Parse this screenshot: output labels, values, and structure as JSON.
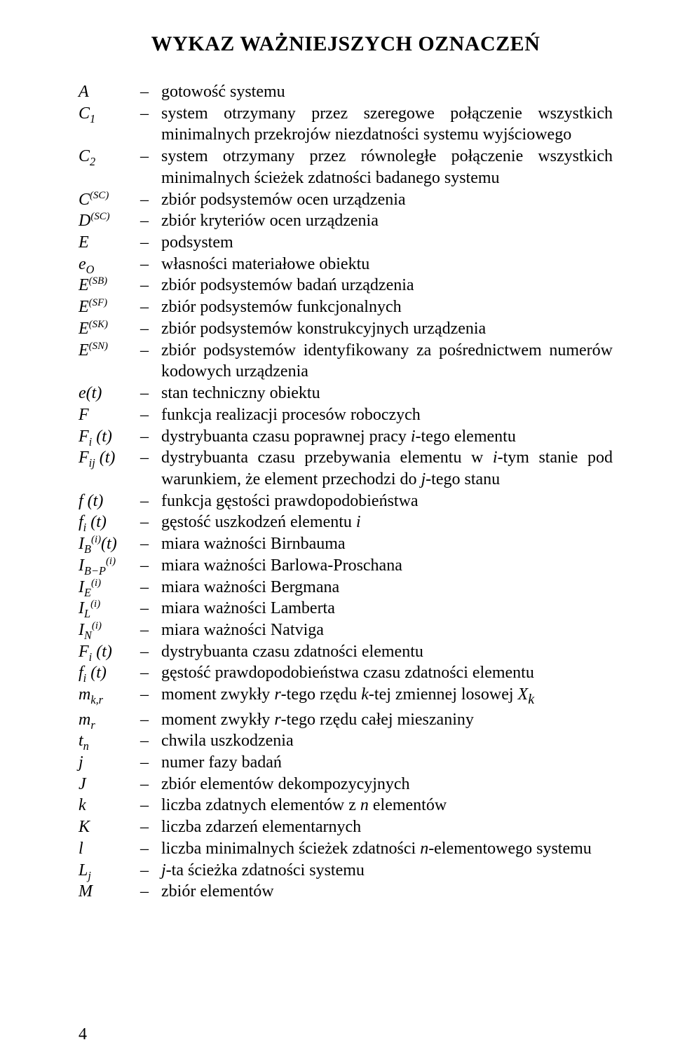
{
  "title": "WYKAZ WAŻNIEJSZYCH OZNACZEŃ",
  "dash": "–",
  "page_number": "4",
  "entries": [
    {
      "symbol": "<i>A</i>",
      "desc": "gotowość systemu"
    },
    {
      "symbol": "<i>C</i><sub>1</sub>",
      "desc": "system otrzymany przez szeregowe połączenie wszystkich minimalnych przekrojów niezdatności systemu wyjściowego"
    },
    {
      "symbol": "<i>C</i><sub>2</sub>",
      "desc": "system otrzymany przez równoległe połączenie wszystkich minimalnych ścieżek zdatności badanego systemu"
    },
    {
      "symbol": "<i>C</i><sup>(<i>SC</i>)</sup>",
      "desc": "zbiór podsystemów ocen urządzenia"
    },
    {
      "symbol": "<i>D</i><sup>(<i>SC</i>)</sup>",
      "desc": "zbiór kryteriów ocen urządzenia"
    },
    {
      "symbol": "<i>E</i>",
      "desc": "podsystem"
    },
    {
      "symbol": "<i>e<sub>O</sub></i>",
      "desc": "własności materiałowe obiektu"
    },
    {
      "symbol": "<i>E</i><sup>(<i>SB</i>)</sup>",
      "desc": "zbiór podsystemów badań urządzenia"
    },
    {
      "symbol": "<i>E</i><sup>(<i>SF</i>)</sup>",
      "desc": "zbiór podsystemów funkcjonalnych"
    },
    {
      "symbol": "<i>E</i><sup>(<i>SK</i>)</sup>",
      "desc": "zbiór podsystemów konstrukcyjnych urządzenia"
    },
    {
      "symbol": "<i>E</i><sup>(<i>SN</i>)</sup>",
      "desc": "zbiór podsystemów identyfikowany za pośrednictwem numerów kodowych urządzenia"
    },
    {
      "symbol": "<i>e</i>(<i>t</i>)",
      "desc": "stan techniczny obiektu"
    },
    {
      "symbol": "<i>F</i>",
      "desc": "funkcja realizacji procesów roboczych"
    },
    {
      "symbol": "<i>F<sub>i</sub></i> (<i>t</i>)",
      "desc": "dystrybuanta czasu poprawnej pracy <span class=\"ital\">i</span>-tego elementu"
    },
    {
      "symbol": "<i>F<sub>ij</sub></i> (<i>t</i>)",
      "desc": "dystrybuanta czasu przebywania elementu w <span class=\"ital\">i</span>-tym stanie pod warunkiem, że element przechodzi do <span class=\"ital\">j</span>-tego stanu"
    },
    {
      "symbol": "<i>f</i> (<i>t</i>)",
      "desc": "funkcja gęstości prawdopodobieństwa"
    },
    {
      "symbol": "<i>f<sub>i</sub></i> (<i>t</i>)",
      "desc": "gęstość uszkodzeń elementu <span class=\"ital\">i</span>"
    },
    {
      "symbol": "<i>I</i><sub><i>B</i></sub><sup>(<i>i</i>)</sup>(<i>t</i>)",
      "desc": "miara ważności Birnbauma"
    },
    {
      "symbol": "<i>I</i><sub><i>B</i>−<i>P</i></sub><sup>(<i>i</i>)</sup>",
      "desc": "miara ważności Barlowa-Proschana"
    },
    {
      "symbol": "<i>I</i><sub><i>E</i></sub><sup>(<i>i</i>)</sup>",
      "desc": "miara ważności Bergmana"
    },
    {
      "symbol": "<i>I</i><sub><i>L</i></sub><sup>(<i>i</i>)</sup>",
      "desc": "miara ważności Lamberta"
    },
    {
      "symbol": "<i>I</i><sub><i>N</i></sub><sup>(<i>i</i>)</sup>",
      "desc": "miara ważności Natviga"
    },
    {
      "symbol": "<i>F<sub>i</sub></i> (<i>t</i>)",
      "desc": "dystrybuanta czasu zdatności elementu"
    },
    {
      "symbol": "<i>f<sub>i</sub></i> (<i>t</i>)",
      "desc": "gęstość prawdopodobieństwa czasu zdatności elementu"
    },
    {
      "symbol": "<i>m<sub>k,r</sub></i>",
      "desc": "moment zwykły <span class=\"ital\">r</span>-tego rzędu <span class=\"ital\">k</span>-tej zmiennej losowej <span class=\"ital\">X<sub>k</sub></span>"
    },
    {
      "symbol": "<i>m<sub>r</sub></i>",
      "desc": "moment zwykły <span class=\"ital\">r</span>-tego rzędu całej mieszaniny"
    },
    {
      "symbol": "<i>t<sub>n</sub></i>",
      "desc": "chwila uszkodzenia"
    },
    {
      "symbol": "<i>j</i>",
      "desc": "numer fazy badań"
    },
    {
      "symbol": "<i>J</i>",
      "desc": "zbiór elementów dekompozycyjnych"
    },
    {
      "symbol": "<i>k</i>",
      "desc": "liczba zdatnych elementów z <span class=\"ital\">n</span> elementów"
    },
    {
      "symbol": "<i>K</i>",
      "desc": "liczba zdarzeń elementarnych"
    },
    {
      "symbol": "<i>l</i>",
      "desc": "liczba minimalnych ścieżek zdatności <span class=\"ital\">n</span>-elementowego systemu"
    },
    {
      "symbol": "<i>L<sub>j</sub></i>",
      "desc": "<span class=\"ital\">j</span>-ta ścieżka zdatności systemu"
    },
    {
      "symbol": "<i>M</i>",
      "desc": "zbiór elementów"
    }
  ]
}
